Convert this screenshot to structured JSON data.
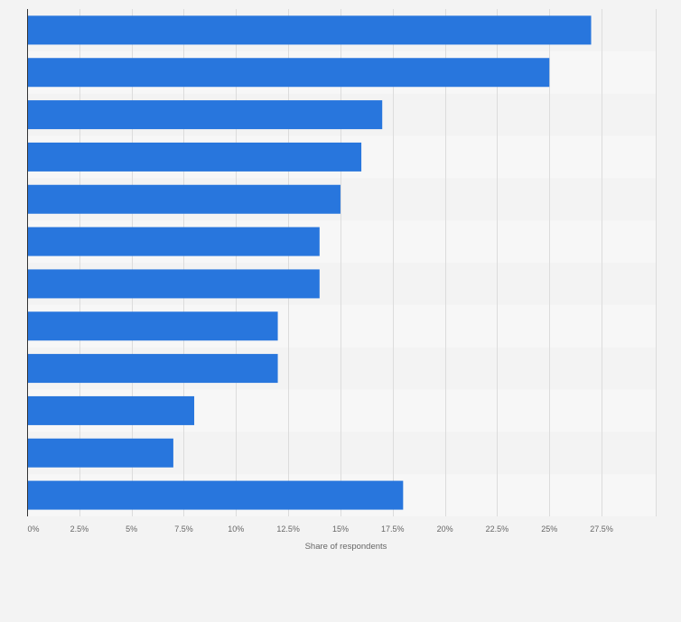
{
  "chart_data": {
    "type": "bar",
    "orientation": "horizontal",
    "categories": [
      "",
      "",
      "",
      "",
      "",
      "",
      "",
      "",
      "",
      "",
      "",
      ""
    ],
    "values": [
      27,
      25,
      17,
      16,
      15,
      14,
      14,
      12,
      12,
      8,
      7,
      18
    ],
    "xlabel": "Share of respondents",
    "ylabel": "",
    "xlim": [
      0,
      30
    ],
    "ticks": [
      0,
      2.5,
      5,
      7.5,
      10,
      12.5,
      15,
      17.5,
      20,
      22.5,
      25,
      27.5
    ],
    "tick_labels": [
      "0%",
      "2.5%",
      "5%",
      "7.5%",
      "10%",
      "12.5%",
      "15%",
      "17.5%",
      "20%",
      "22.5%",
      "25%",
      "27.5%"
    ],
    "grid": true,
    "legend": "none",
    "bar_color": "#2876dd",
    "band_colors": [
      "#f3f3f3",
      "#f7f7f7"
    ],
    "background_color": "#f3f3f3"
  }
}
